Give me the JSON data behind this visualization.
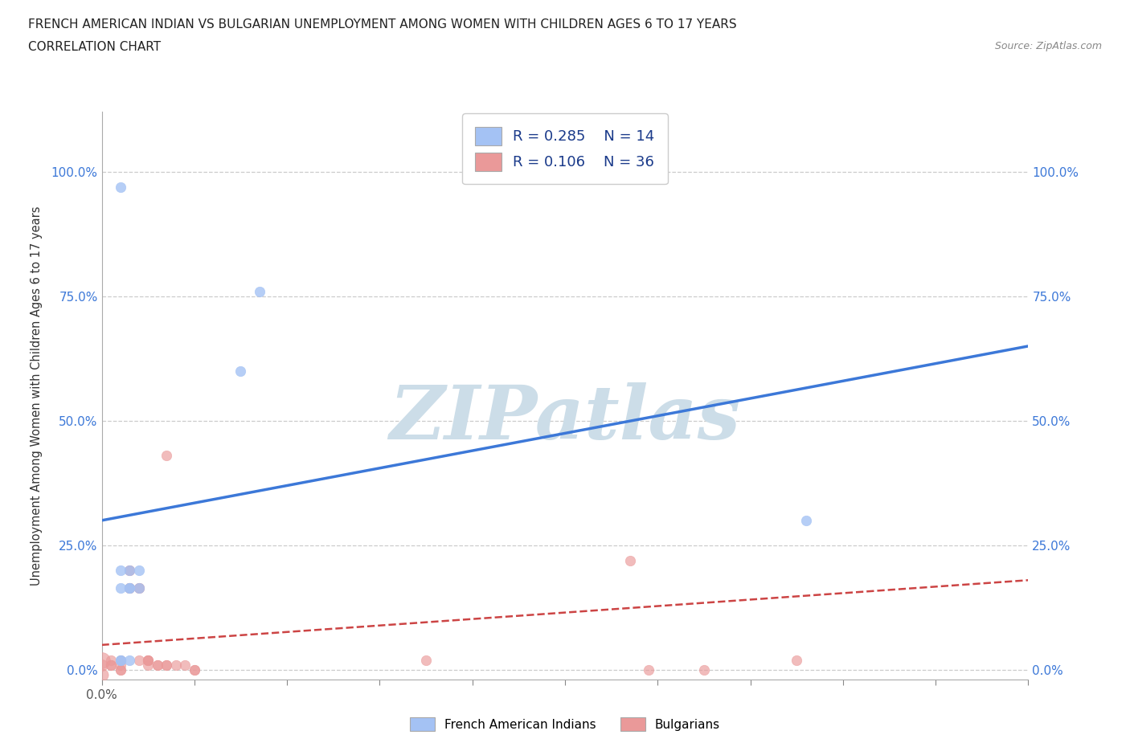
{
  "title": "FRENCH AMERICAN INDIAN VS BULGARIAN UNEMPLOYMENT AMONG WOMEN WITH CHILDREN AGES 6 TO 17 YEARS",
  "subtitle": "CORRELATION CHART",
  "source": "Source: ZipAtlas.com",
  "ylabel": "Unemployment Among Women with Children Ages 6 to 17 years",
  "xlim": [
    0.0,
    0.1
  ],
  "ylim": [
    -0.02,
    1.12
  ],
  "yticks": [
    0.0,
    0.25,
    0.5,
    0.75,
    1.0
  ],
  "ytick_labels": [
    "0.0%",
    "25.0%",
    "50.0%",
    "75.0%",
    "100.0%"
  ],
  "xtick_positions": [
    0.0,
    0.01,
    0.02,
    0.03,
    0.04,
    0.05,
    0.06,
    0.07,
    0.08,
    0.09,
    0.1
  ],
  "xtick_labels_sparse": {
    "0.0": "0.0%"
  },
  "blue_R": 0.285,
  "blue_N": 14,
  "pink_R": 0.106,
  "pink_N": 36,
  "blue_color": "#a4c2f4",
  "pink_color": "#ea9999",
  "blue_line_color": "#3c78d8",
  "pink_line_color": "#cc4444",
  "watermark": "ZIPatlas",
  "watermark_color": "#ccdde8",
  "legend_label_blue": "French American Indians",
  "legend_label_pink": "Bulgarians",
  "blue_points": [
    [
      0.002,
      0.97
    ],
    [
      0.017,
      0.76
    ],
    [
      0.015,
      0.6
    ],
    [
      0.003,
      0.2
    ],
    [
      0.003,
      0.165
    ],
    [
      0.004,
      0.2
    ],
    [
      0.002,
      0.2
    ],
    [
      0.002,
      0.165
    ],
    [
      0.003,
      0.165
    ],
    [
      0.004,
      0.165
    ],
    [
      0.003,
      0.02
    ],
    [
      0.002,
      0.02
    ],
    [
      0.002,
      0.02
    ],
    [
      0.076,
      0.3
    ]
  ],
  "blue_sizes": [
    80,
    80,
    80,
    80,
    80,
    80,
    80,
    80,
    80,
    80,
    80,
    80,
    80,
    80
  ],
  "pink_points": [
    [
      0.0,
      0.02
    ],
    [
      0.0,
      0.01
    ],
    [
      0.001,
      0.02
    ],
    [
      0.001,
      0.01
    ],
    [
      0.001,
      0.01
    ],
    [
      0.002,
      0.02
    ],
    [
      0.002,
      0.01
    ],
    [
      0.002,
      0.0
    ],
    [
      0.002,
      0.0
    ],
    [
      0.003,
      0.2
    ],
    [
      0.003,
      0.2
    ],
    [
      0.003,
      0.165
    ],
    [
      0.003,
      0.165
    ],
    [
      0.003,
      0.165
    ],
    [
      0.004,
      0.165
    ],
    [
      0.004,
      0.165
    ],
    [
      0.004,
      0.02
    ],
    [
      0.005,
      0.02
    ],
    [
      0.005,
      0.02
    ],
    [
      0.005,
      0.02
    ],
    [
      0.005,
      0.01
    ],
    [
      0.006,
      0.01
    ],
    [
      0.006,
      0.01
    ],
    [
      0.007,
      0.43
    ],
    [
      0.007,
      0.01
    ],
    [
      0.007,
      0.01
    ],
    [
      0.008,
      0.01
    ],
    [
      0.009,
      0.01
    ],
    [
      0.01,
      0.0
    ],
    [
      0.01,
      0.0
    ],
    [
      0.035,
      0.02
    ],
    [
      0.057,
      0.22
    ],
    [
      0.059,
      0.0
    ],
    [
      0.065,
      0.0
    ],
    [
      0.075,
      0.02
    ],
    [
      0.0,
      -0.01
    ]
  ],
  "pink_sizes": [
    200,
    100,
    80,
    80,
    80,
    80,
    80,
    80,
    80,
    80,
    80,
    80,
    80,
    80,
    80,
    80,
    80,
    80,
    80,
    80,
    80,
    80,
    80,
    80,
    80,
    80,
    80,
    80,
    80,
    80,
    80,
    80,
    80,
    80,
    80,
    120
  ],
  "blue_trendline": [
    0.0,
    0.3,
    0.1,
    0.65
  ],
  "pink_trendline": [
    0.0,
    0.05,
    0.1,
    0.18
  ]
}
